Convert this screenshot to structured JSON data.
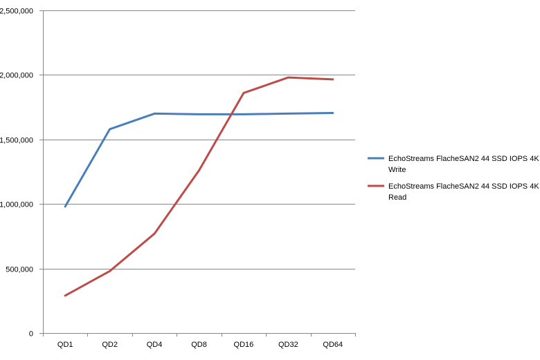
{
  "chart_data": {
    "type": "line",
    "title": "",
    "xlabel": "",
    "ylabel": "",
    "categories": [
      "QD1",
      "QD2",
      "QD4",
      "QD8",
      "QD16",
      "QD32",
      "QD64"
    ],
    "ylim": [
      0,
      2500000
    ],
    "yticks": [
      0,
      500000,
      1000000,
      1500000,
      2000000,
      2500000
    ],
    "ytick_labels": [
      "0",
      "500,000",
      "1,000,000",
      "1,500,000",
      "2,000,000",
      "2,500,000"
    ],
    "grid": "horizontal major",
    "legend_position": "right",
    "series": [
      {
        "name_line1": "EchoStreams FlacheSAN2 44 SSD IOPS 4K",
        "name_line2": "Write",
        "color": "#4a7ebb",
        "values": [
          980000,
          1580000,
          1700000,
          1695000,
          1695000,
          1700000,
          1705000
        ]
      },
      {
        "name_line1": "EchoStreams FlacheSAN2 44 SSD IOPS 4K",
        "name_line2": "Read",
        "color": "#be4b48",
        "values": [
          290000,
          480000,
          770000,
          1260000,
          1860000,
          1980000,
          1965000
        ]
      }
    ]
  }
}
